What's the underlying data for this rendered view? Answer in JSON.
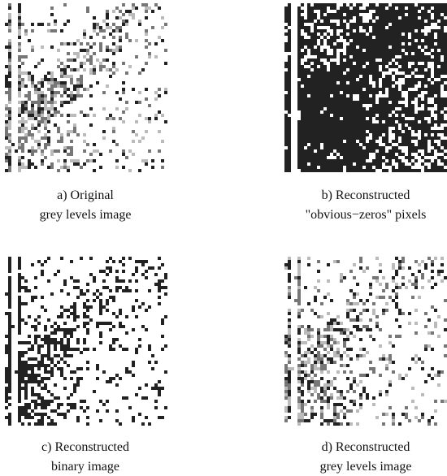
{
  "panels": [
    {
      "caption": [
        "a) Original",
        "grey levels image"
      ]
    },
    {
      "caption": [
        "b) Reconstructed",
        "\"obvious−zeros\" pixels"
      ]
    },
    {
      "caption": [
        "c) Reconstructed",
        "binary image"
      ]
    },
    {
      "caption": [
        "d) Reconstructed",
        "grey levels image"
      ]
    }
  ]
}
